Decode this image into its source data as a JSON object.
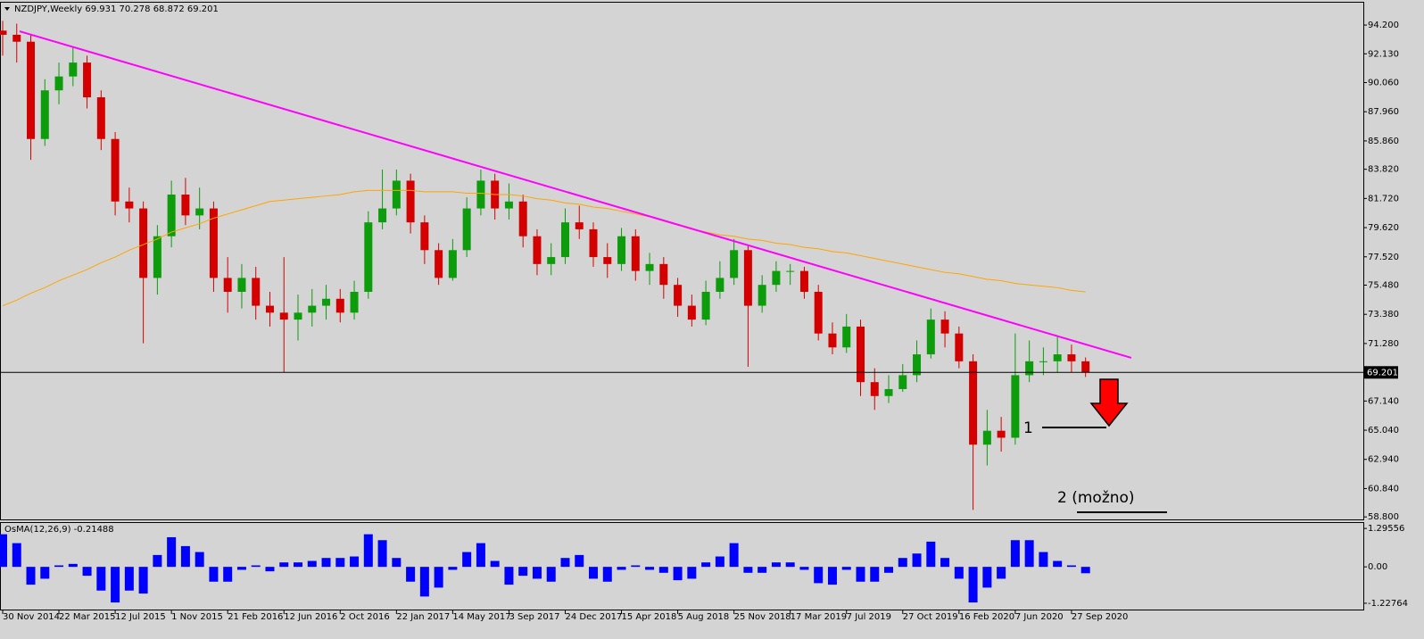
{
  "chart_data": {
    "type": "candlestick",
    "title": "NZDJPY,Weekly  69.931 70.278 68.872 69.201",
    "bull_color": "#0c9c0c",
    "bear_color": "#d40000",
    "background": "#d4d4d4",
    "xlim": [
      -0.76,
      387
    ],
    "ylim": [
      58.62,
      95.81
    ],
    "x": [
      0,
      4,
      8,
      12,
      16,
      20,
      24,
      28,
      32,
      36,
      40,
      44,
      48,
      52,
      56,
      60,
      64,
      68,
      72,
      76,
      80,
      84,
      88,
      92,
      96,
      100,
      104,
      108,
      112,
      116,
      120,
      124,
      128,
      132,
      136,
      140,
      144,
      148,
      152,
      156,
      160,
      164,
      168,
      172,
      176,
      180,
      184,
      188,
      192,
      196,
      200,
      204,
      208,
      212,
      216,
      220,
      224,
      228,
      232,
      236,
      240,
      244,
      248,
      252,
      256,
      260,
      264,
      268,
      272,
      276,
      280,
      284,
      288,
      292,
      296,
      300,
      304,
      308
    ],
    "open": [
      93.8,
      93.5,
      93,
      86,
      89.5,
      90.5,
      91.5,
      89,
      86,
      81.5,
      81,
      76,
      79,
      82,
      80.5,
      81,
      76,
      75,
      76,
      74,
      73.5,
      73,
      73.5,
      74,
      74.5,
      73.5,
      75,
      80,
      81,
      83,
      80,
      78,
      76,
      78,
      81,
      83,
      81,
      81.5,
      79,
      77,
      77.5,
      80,
      79.5,
      77.5,
      77,
      79,
      76.5,
      77,
      75.5,
      74,
      73,
      75,
      76,
      78,
      74,
      75.5,
      76.5,
      76.5,
      75,
      72,
      71,
      72.5,
      68.5,
      67.5,
      68,
      69,
      70.5,
      73,
      72,
      70,
      64,
      65,
      64.5,
      69,
      70,
      70,
      70.5,
      70
    ],
    "high": [
      94.5,
      94.3,
      93.5,
      90.3,
      91.5,
      92.6,
      92,
      89.5,
      86.5,
      82.5,
      81.5,
      79.8,
      83,
      83.2,
      82.5,
      81.5,
      77.5,
      77,
      76.8,
      75,
      77.5,
      74.8,
      75.2,
      75.5,
      75.2,
      75.8,
      80.8,
      83.8,
      83.8,
      83.5,
      80.5,
      78.5,
      78.8,
      81.8,
      83.8,
      83.5,
      82.8,
      82,
      79.5,
      78.5,
      81,
      81.2,
      80,
      78.5,
      79.6,
      79.5,
      77.8,
      77.5,
      76,
      74.8,
      75.8,
      77.2,
      78.8,
      78.3,
      76.2,
      77.2,
      77,
      76.8,
      75.5,
      72.8,
      73.4,
      73,
      69.5,
      69,
      69.8,
      71.5,
      73.8,
      73.6,
      72.5,
      70.5,
      66.5,
      66,
      72,
      71.5,
      71,
      71.8,
      71.2,
      70.278
    ],
    "low": [
      92,
      91.5,
      84.5,
      85.5,
      88.5,
      89.8,
      88.2,
      85.2,
      80.5,
      80,
      71.3,
      74.8,
      78.2,
      79.8,
      79.5,
      75,
      73.5,
      73.8,
      73,
      72.5,
      69.2,
      71.5,
      72.5,
      73,
      72.8,
      73,
      74.5,
      79.5,
      80.5,
      79.2,
      77,
      75.5,
      75.8,
      77.5,
      80.5,
      80.2,
      80.2,
      78.2,
      76.2,
      76.2,
      77,
      78.8,
      76.8,
      76,
      76.5,
      75.8,
      75.5,
      74.5,
      73.2,
      72.5,
      72.6,
      74.5,
      75.5,
      69.6,
      73.5,
      75,
      75.5,
      74.5,
      71.5,
      70.5,
      70.6,
      67.5,
      66.5,
      67,
      67.8,
      68.5,
      70.2,
      71,
      69.5,
      59.3,
      62.5,
      63.5,
      64,
      68.5,
      69,
      69.2,
      69.2,
      68.872
    ],
    "close": [
      93.5,
      93,
      86,
      89.5,
      90.5,
      91.5,
      89,
      86,
      81.5,
      81,
      76,
      79,
      82,
      80.5,
      81,
      76,
      75,
      76,
      74,
      73.5,
      73,
      73.5,
      74,
      74.5,
      73.5,
      75,
      80,
      81,
      83,
      80,
      78,
      76,
      78,
      81,
      83,
      81,
      81.5,
      79,
      77,
      77.5,
      80,
      79.5,
      77.5,
      77,
      79,
      76.5,
      77,
      75.5,
      74,
      73,
      75,
      76,
      78,
      74,
      75.5,
      76.5,
      76.5,
      75,
      72,
      71,
      72.5,
      68.5,
      67.5,
      68,
      69,
      70.5,
      73,
      72,
      70,
      64,
      65,
      64.5,
      69,
      70,
      70,
      70.5,
      70,
      69.201
    ],
    "ma": {
      "color": "#ffa500",
      "values": [
        74.0,
        74.4,
        74.9,
        75.3,
        75.8,
        76.2,
        76.6,
        77.1,
        77.5,
        78.0,
        78.4,
        78.8,
        79.3,
        79.6,
        79.9,
        80.3,
        80.6,
        80.9,
        81.2,
        81.5,
        81.6,
        81.7,
        81.8,
        81.9,
        82.0,
        82.2,
        82.3,
        82.3,
        82.3,
        82.3,
        82.2,
        82.2,
        82.2,
        82.1,
        82.1,
        82.0,
        82.0,
        81.9,
        81.7,
        81.6,
        81.4,
        81.3,
        81.1,
        81.0,
        80.8,
        80.6,
        80.4,
        80.1,
        79.8,
        79.5,
        79.3,
        79.1,
        79.0,
        78.8,
        78.7,
        78.5,
        78.4,
        78.2,
        78.1,
        77.9,
        77.8,
        77.6,
        77.4,
        77.2,
        77.0,
        76.8,
        76.6,
        76.4,
        76.3,
        76.1,
        75.9,
        75.8,
        75.6,
        75.5,
        75.4,
        75.3,
        75.1,
        75.0
      ]
    },
    "trendline": {
      "color": "#ff00ff",
      "x": [
        4.8,
        321
      ],
      "values": [
        93.75,
        70.25
      ]
    },
    "current_price": 69.201,
    "yticks": [
      {
        "value": 94.2,
        "label": "94.200"
      },
      {
        "value": 92.13,
        "label": "92.130"
      },
      {
        "value": 90.06,
        "label": "90.060"
      },
      {
        "value": 87.96,
        "label": "87.960"
      },
      {
        "value": 85.86,
        "label": "85.860"
      },
      {
        "value": 83.82,
        "label": "83.820"
      },
      {
        "value": 81.72,
        "label": "81.720"
      },
      {
        "value": 79.62,
        "label": "79.620"
      },
      {
        "value": 77.52,
        "label": "77.520"
      },
      {
        "value": 75.48,
        "label": "75.480"
      },
      {
        "value": 73.38,
        "label": "73.380"
      },
      {
        "value": 71.28,
        "label": "71.280"
      },
      {
        "value": 67.14,
        "label": "67.140"
      },
      {
        "value": 65.04,
        "label": "65.040"
      },
      {
        "value": 62.94,
        "label": "62.940"
      },
      {
        "value": 60.84,
        "label": "60.840"
      },
      {
        "value": 58.8,
        "label": "58.800"
      }
    ],
    "xticks": [
      {
        "value": 0,
        "label": "30 Nov 2014"
      },
      {
        "value": 16,
        "label": "22 Mar 2015"
      },
      {
        "value": 32,
        "label": "12 Jul 2015"
      },
      {
        "value": 48,
        "label": "1 Nov 2015"
      },
      {
        "value": 64,
        "label": "21 Feb 2016"
      },
      {
        "value": 80,
        "label": "12 Jun 2016"
      },
      {
        "value": 96,
        "label": "2 Oct 2016"
      },
      {
        "value": 112,
        "label": "22 Jan 2017"
      },
      {
        "value": 128,
        "label": "14 May 2017"
      },
      {
        "value": 144,
        "label": "3 Sep 2017"
      },
      {
        "value": 160,
        "label": "24 Dec 2017"
      },
      {
        "value": 176,
        "label": "15 Apr 2018"
      },
      {
        "value": 192,
        "label": "5 Aug 2018"
      },
      {
        "value": 208,
        "label": "25 Nov 2018"
      },
      {
        "value": 224,
        "label": "17 Mar 2019"
      },
      {
        "value": 240,
        "label": "7 Jul 2019"
      },
      {
        "value": 256,
        "label": "27 Oct 2019"
      },
      {
        "value": 272,
        "label": "16 Feb 2020"
      },
      {
        "value": 288,
        "label": "7 Jun 2020"
      },
      {
        "value": 304,
        "label": "27 Sep 2020"
      }
    ],
    "annotations": [
      "1",
      "2 (možno)"
    ],
    "indicator": {
      "type": "histogram",
      "title": "OsMA(12,26,9) -0.21488",
      "color": "#0000ff",
      "ylim": [
        -1.44,
        1.48
      ],
      "yticks": [
        1.29556,
        {
          "value": 0,
          "label": "0.00"
        },
        -1.22764
      ],
      "values": [
        1.1,
        0.8,
        -0.6,
        -0.4,
        0.05,
        0.1,
        -0.3,
        -0.8,
        -1.2,
        -0.8,
        -0.9,
        0.4,
        1.0,
        0.7,
        0.5,
        -0.5,
        -0.5,
        -0.1,
        0.05,
        -0.15,
        0.15,
        0.15,
        0.2,
        0.3,
        0.3,
        0.35,
        1.1,
        0.9,
        0.3,
        -0.5,
        -1.0,
        -0.7,
        -0.1,
        0.5,
        0.8,
        0.2,
        -0.6,
        -0.3,
        -0.4,
        -0.5,
        0.3,
        0.4,
        -0.4,
        -0.5,
        -0.1,
        0.05,
        -0.1,
        -0.2,
        -0.45,
        -0.4,
        0.15,
        0.35,
        0.8,
        -0.2,
        -0.2,
        0.15,
        0.15,
        -0.1,
        -0.55,
        -0.6,
        -0.1,
        -0.5,
        -0.5,
        -0.2,
        0.3,
        0.45,
        0.85,
        0.3,
        -0.4,
        -1.2,
        -0.7,
        -0.4,
        0.9,
        0.9,
        0.5,
        0.2,
        0.05,
        -0.21488
      ]
    }
  }
}
